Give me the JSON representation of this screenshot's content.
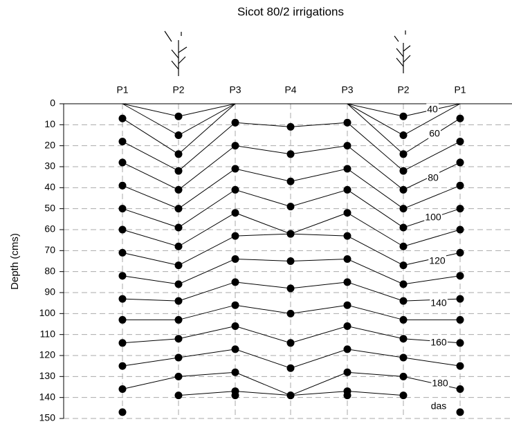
{
  "chart_data": {
    "type": "line",
    "title": "Sicot 80/2 irrigations",
    "y_label": "Depth (cms)",
    "categories": [
      "P1",
      "P2",
      "P3",
      "P4",
      "P3",
      "P2",
      "P1"
    ],
    "ylim": [
      0,
      150
    ],
    "y_inverted": true,
    "yticks": [
      0,
      10,
      20,
      30,
      40,
      50,
      60,
      70,
      80,
      90,
      100,
      110,
      120,
      130,
      140,
      150
    ],
    "grid": true,
    "color": "#000000",
    "series": [
      {
        "values": [
          0,
          6,
          0,
          0,
          0,
          6,
          0
        ]
      },
      {
        "values": [
          0,
          15,
          0,
          0,
          0,
          15,
          0
        ]
      },
      {
        "values": [
          7,
          24,
          0,
          0,
          0,
          24,
          7
        ]
      },
      {
        "values": [
          18,
          32,
          9,
          11,
          9,
          32,
          18
        ]
      },
      {
        "values": [
          28,
          41,
          20,
          24,
          20,
          41,
          28
        ]
      },
      {
        "values": [
          39,
          50,
          31,
          37,
          31,
          50,
          39
        ]
      },
      {
        "values": [
          50,
          59,
          41,
          49,
          41,
          59,
          50
        ]
      },
      {
        "values": [
          60,
          68,
          52,
          62,
          52,
          68,
          60
        ]
      },
      {
        "values": [
          71,
          77,
          63,
          62,
          63,
          77,
          71
        ]
      },
      {
        "values": [
          82,
          86,
          74,
          75,
          74,
          86,
          82
        ]
      },
      {
        "values": [
          93,
          94,
          85,
          88,
          85,
          94,
          93
        ]
      },
      {
        "values": [
          103,
          103,
          96,
          100,
          96,
          103,
          103
        ]
      },
      {
        "values": [
          114,
          112,
          106,
          114,
          106,
          112,
          114
        ]
      },
      {
        "values": [
          125,
          121,
          117,
          126,
          117,
          121,
          125
        ]
      },
      {
        "values": [
          136,
          130,
          128,
          139,
          128,
          130,
          136
        ]
      },
      {
        "values": [
          null,
          139,
          137,
          139,
          137,
          139,
          null
        ]
      },
      {
        "values": [
          147,
          null,
          139,
          null,
          139,
          null,
          147
        ],
        "line": false
      }
    ],
    "annotations": [
      "40",
      "60",
      "80",
      "100",
      "120",
      "140",
      "160",
      "180",
      "das"
    ]
  }
}
